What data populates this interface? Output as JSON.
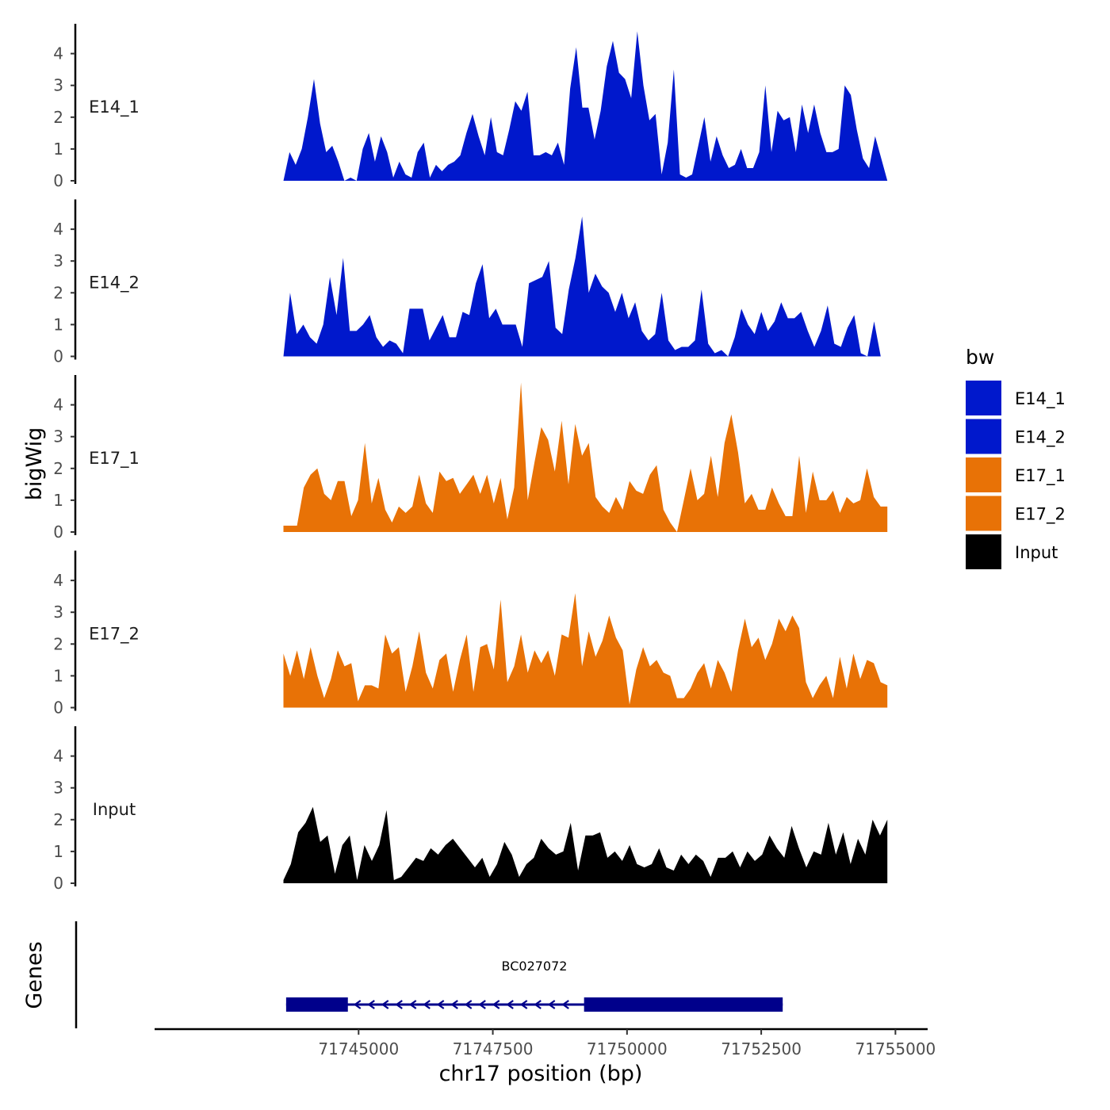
{
  "chart_data": {
    "type": "area",
    "ylabel": "bigWig",
    "xlabel": "chr17 position (bp)",
    "xlim": [
      71741200,
      71755600
    ],
    "x_ticks": [
      71745000,
      71747500,
      71750000,
      71752500,
      71755000
    ],
    "x_tick_labels": [
      "71745000",
      "71747500",
      "71750000",
      "71752500",
      "71755000"
    ],
    "ylim": [
      0,
      4.9
    ],
    "y_ticks": [
      0,
      1,
      2,
      3,
      4
    ],
    "y_tick_labels": [
      "0",
      "1",
      "2",
      "3",
      "4"
    ],
    "tracks": [
      {
        "name": "E14_1",
        "color": "#0018CC",
        "start": 71743600,
        "end": 71754850,
        "values": [
          0.0,
          0.9,
          0.5,
          1.0,
          2.0,
          3.2,
          1.8,
          0.9,
          1.1,
          0.6,
          0.0,
          0.1,
          0.0,
          1.0,
          1.5,
          0.6,
          1.4,
          0.9,
          0.1,
          0.6,
          0.2,
          0.1,
          0.9,
          1.2,
          0.1,
          0.5,
          0.3,
          0.5,
          0.6,
          0.8,
          1.5,
          2.1,
          1.4,
          0.8,
          2.0,
          0.9,
          0.8,
          1.6,
          2.5,
          2.2,
          2.8,
          0.8,
          0.8,
          0.9,
          0.8,
          1.2,
          0.5,
          2.9,
          4.2,
          2.3,
          2.3,
          1.3,
          2.2,
          3.6,
          4.4,
          3.4,
          3.2,
          2.6,
          4.7,
          3.0,
          1.9,
          2.1,
          0.2,
          1.2,
          3.5,
          0.2,
          0.1,
          0.2,
          1.1,
          2.0,
          0.6,
          1.4,
          0.8,
          0.4,
          0.5,
          1.0,
          0.4,
          0.4,
          0.9,
          3.0,
          0.9,
          2.2,
          1.9,
          2.0,
          0.9,
          2.4,
          1.5,
          2.4,
          1.5,
          0.9,
          0.9,
          1.0,
          3.0,
          2.7,
          1.6,
          0.7,
          0.4,
          1.4,
          0.7,
          0.0
        ],
        "label_lines": [
          "E14_1"
        ]
      },
      {
        "name": "E14_2",
        "color": "#0018CC",
        "start": 71743600,
        "end": 71754850,
        "values": [
          0.0,
          2.0,
          0.7,
          1.0,
          0.6,
          0.4,
          1.0,
          2.5,
          1.3,
          3.1,
          0.8,
          0.8,
          1.0,
          1.3,
          0.6,
          0.3,
          0.5,
          0.4,
          0.1,
          1.5,
          1.5,
          1.5,
          0.5,
          0.9,
          1.3,
          0.6,
          0.6,
          1.4,
          1.3,
          2.3,
          2.9,
          1.2,
          1.5,
          1.0,
          1.0,
          1.0,
          0.3,
          2.3,
          2.4,
          2.5,
          3.0,
          0.9,
          0.7,
          2.1,
          3.1,
          4.4,
          2.0,
          2.6,
          2.2,
          2.0,
          1.4,
          2.0,
          1.2,
          1.7,
          0.8,
          0.5,
          0.7,
          2.0,
          0.5,
          0.2,
          0.3,
          0.3,
          0.5,
          2.1,
          0.4,
          0.1,
          0.2,
          0.0,
          0.6,
          1.5,
          1.0,
          0.7,
          1.4,
          0.8,
          1.1,
          1.7,
          1.2,
          1.2,
          1.4,
          0.8,
          0.3,
          0.8,
          1.6,
          0.4,
          0.3,
          0.9,
          1.3,
          0.1,
          0.0,
          1.1,
          0.0,
          0.0
        ],
        "label_lines": [
          "E14_2"
        ]
      },
      {
        "name": "E17_1",
        "color": "#E87206",
        "start": 71743600,
        "end": 71754850,
        "values": [
          0.2,
          0.2,
          0.2,
          1.4,
          1.8,
          2.0,
          1.2,
          1.0,
          1.6,
          1.6,
          0.5,
          1.0,
          2.8,
          0.9,
          1.7,
          0.7,
          0.3,
          0.8,
          0.6,
          0.8,
          1.8,
          0.9,
          0.6,
          1.9,
          1.6,
          1.7,
          1.2,
          1.5,
          1.8,
          1.2,
          1.8,
          0.9,
          1.7,
          0.4,
          1.4,
          4.7,
          1.0,
          2.2,
          3.3,
          2.9,
          1.9,
          3.5,
          1.5,
          3.4,
          2.4,
          2.8,
          1.1,
          0.8,
          0.6,
          1.1,
          0.7,
          1.6,
          1.3,
          1.2,
          1.8,
          2.1,
          0.7,
          0.3,
          0.0,
          1.0,
          2.0,
          1.0,
          1.2,
          2.4,
          1.1,
          2.8,
          3.7,
          2.5,
          0.9,
          1.2,
          0.7,
          0.7,
          1.4,
          0.9,
          0.5,
          0.5,
          2.4,
          0.6,
          1.9,
          1.0,
          1.0,
          1.3,
          0.6,
          1.1,
          0.9,
          1.0,
          2.0,
          1.1,
          0.8,
          0.8
        ]
      },
      {
        "name": "E17_2",
        "color": "#E87206",
        "start": 71743600,
        "end": 71754850,
        "values": [
          1.7,
          1.0,
          1.8,
          0.9,
          1.9,
          1.0,
          0.3,
          0.9,
          1.8,
          1.3,
          1.4,
          0.2,
          0.7,
          0.7,
          0.6,
          2.3,
          1.7,
          1.9,
          0.5,
          1.3,
          2.4,
          1.1,
          0.6,
          1.5,
          1.7,
          0.5,
          1.5,
          2.3,
          0.5,
          1.9,
          2.0,
          1.2,
          3.4,
          0.8,
          1.3,
          2.3,
          1.1,
          1.8,
          1.4,
          1.8,
          1.0,
          2.3,
          2.2,
          3.6,
          1.3,
          2.4,
          1.6,
          2.1,
          2.9,
          2.2,
          1.8,
          0.1,
          1.2,
          1.9,
          1.3,
          1.5,
          1.1,
          1.0,
          0.3,
          0.3,
          0.6,
          1.1,
          1.4,
          0.6,
          1.5,
          1.1,
          0.5,
          1.8,
          2.8,
          1.9,
          2.2,
          1.5,
          2.0,
          2.8,
          2.4,
          2.9,
          2.5,
          0.8,
          0.3,
          0.7,
          1.0,
          0.3,
          1.6,
          0.6,
          1.7,
          0.9,
          1.5,
          1.4,
          0.8,
          0.7
        ]
      },
      {
        "name": "Input",
        "color": "#000000",
        "start": 71743600,
        "end": 71754850,
        "values": [
          0.1,
          0.6,
          1.6,
          1.9,
          2.4,
          1.3,
          1.5,
          0.3,
          1.2,
          1.5,
          0.1,
          1.2,
          0.7,
          1.2,
          2.3,
          0.1,
          0.2,
          0.5,
          0.8,
          0.7,
          1.1,
          0.9,
          1.2,
          1.4,
          1.1,
          0.8,
          0.5,
          0.8,
          0.2,
          0.6,
          1.3,
          0.9,
          0.2,
          0.6,
          0.8,
          1.4,
          1.1,
          0.9,
          1.0,
          1.9,
          0.4,
          1.5,
          1.5,
          1.6,
          0.8,
          1.0,
          0.7,
          1.2,
          0.6,
          0.5,
          0.6,
          1.1,
          0.5,
          0.4,
          0.9,
          0.6,
          0.9,
          0.7,
          0.2,
          0.8,
          0.8,
          1.0,
          0.5,
          1.0,
          0.7,
          0.9,
          1.5,
          1.1,
          0.8,
          1.8,
          1.1,
          0.5,
          1.0,
          0.9,
          1.9,
          0.9,
          1.6,
          0.6,
          1.4,
          0.9,
          2.0,
          1.5,
          2.0
        ]
      }
    ],
    "legend": {
      "title": "bw",
      "entries": [
        {
          "label": "E14_1",
          "color": "#0018CC"
        },
        {
          "label": "E14_2",
          "color": "#0018CC"
        },
        {
          "label": "E17_1",
          "color": "#E87206"
        },
        {
          "label": "E17_2",
          "color": "#E87206"
        },
        {
          "label": "Input",
          "color": "#000000"
        }
      ]
    },
    "genes_panel": {
      "label": "Genes",
      "gene_name": "BC027072",
      "strand": "-",
      "color": "#00008B",
      "start": 71743650,
      "end": 71752900,
      "exons": [
        [
          71743650,
          71744800
        ],
        [
          71749200,
          71752900
        ]
      ]
    }
  }
}
